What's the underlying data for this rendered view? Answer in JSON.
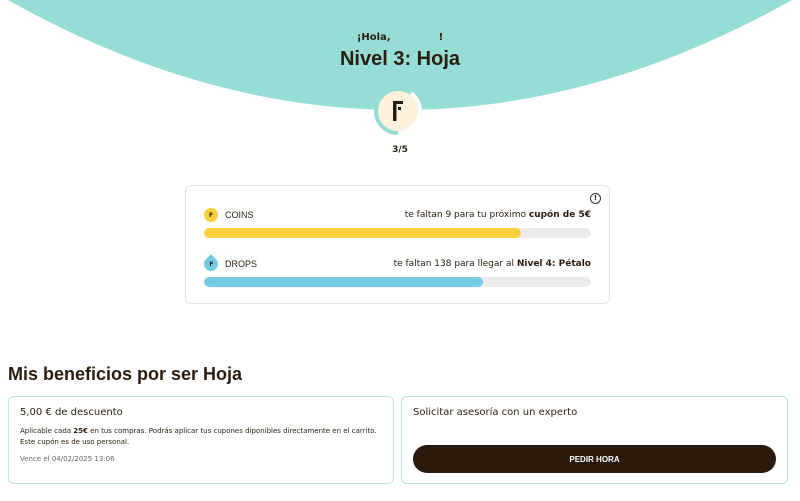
{
  "colors": {
    "teal": "#96ddd5",
    "coins": "#fbd03f",
    "drops": "#72cce3",
    "dark": "#2a1a0e"
  },
  "header": {
    "greeting_prefix": "¡Hola,",
    "greeting_suffix": "!",
    "title": "Nivel 3: Hoja",
    "level_progress": "3/5",
    "level_fraction": 0.6,
    "badge_letter": "F"
  },
  "progress": {
    "info_icon": "info-icon",
    "coins": {
      "label": "COINS",
      "icon_letter": "F",
      "msg": "te faltan 9 para tu próximo ",
      "msg_bold": "cupón de 5€",
      "percent": 82
    },
    "drops": {
      "label": "DROPS",
      "icon_letter": "F",
      "msg": "te faltan 138 para llegar al ",
      "msg_bold": "Nivel 4: Pétalo",
      "percent": 72
    }
  },
  "benefits": {
    "title": "Mis beneficios por ser Hoja",
    "items": [
      {
        "title": "5,00 € de descuento",
        "desc_pre": "Aplicable cada ",
        "desc_bold": "25€",
        "desc_post": " en tus compras. Podrás aplicar tus cupones diponibles directamente en el carrito. Este cupón es de uso personal.",
        "expiry": "Vence el 04/02/2025 13:06"
      },
      {
        "title": "Solicitar asesoría con un experto",
        "button": "PEDIR HORA"
      }
    ]
  }
}
